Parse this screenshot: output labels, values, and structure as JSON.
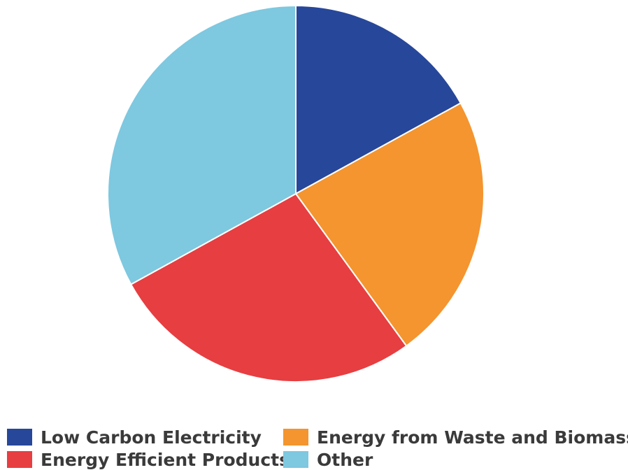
{
  "chart_data": {
    "type": "pie",
    "title": "",
    "start_angle_deg": 0,
    "direction": "clockwise",
    "slices": [
      {
        "label": "Low Carbon Electricity",
        "value": 17,
        "color": "#27479a"
      },
      {
        "label": "Energy from Waste and Biomass",
        "value": 23,
        "color": "#f4952f"
      },
      {
        "label": "Energy Efficient Products",
        "value": 27,
        "color": "#e73e41"
      },
      {
        "label": "Other",
        "value": 33,
        "color": "#7ec8e0"
      }
    ],
    "legend": {
      "position": "bottom",
      "order": [
        0,
        1,
        2,
        3
      ]
    }
  }
}
